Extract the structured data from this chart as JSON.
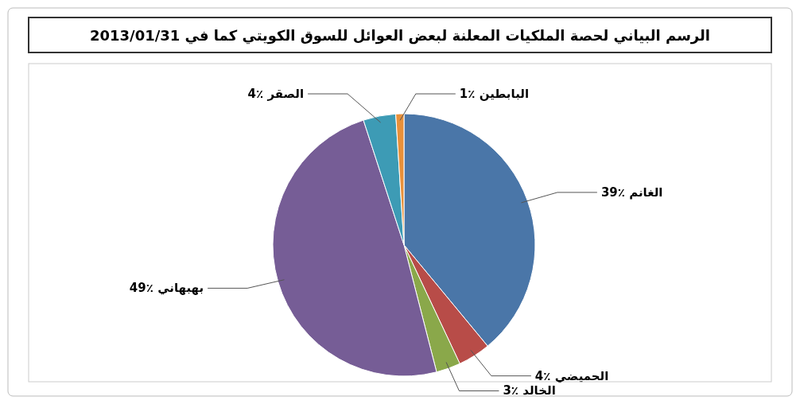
{
  "chart_data": {
    "type": "pie",
    "title": "الرسم البياني لحصة الملكيات المعلنة لبعض العوائل للسوق الكويتي كما في 2013/01/31",
    "categories": [
      "الغانم",
      "الحميضي",
      "الخالد",
      "بهبهاني",
      "الصقر",
      "البابطين"
    ],
    "values": [
      39,
      4,
      3,
      49,
      4,
      1
    ],
    "value_labels": [
      "39٪",
      "4٪",
      "3٪",
      "49٪",
      "4٪",
      "1٪"
    ],
    "colors": [
      "#4a76a8",
      "#b84c48",
      "#8aa84a",
      "#765d96",
      "#3d9bb5",
      "#e8903a"
    ]
  }
}
